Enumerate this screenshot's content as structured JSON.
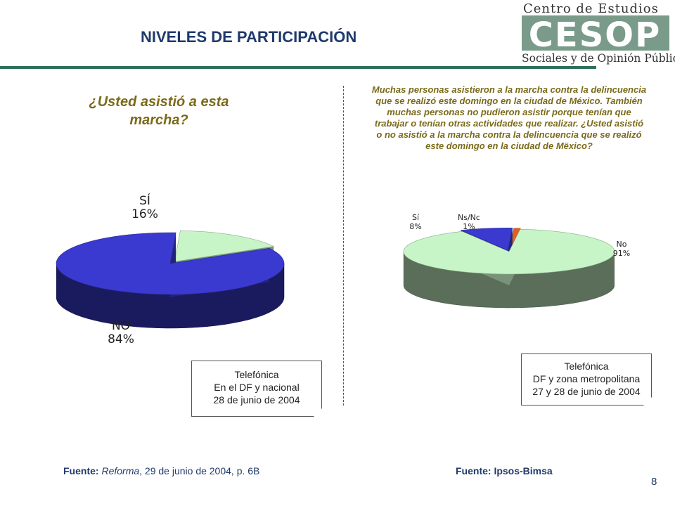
{
  "header": {
    "title": "NIVELES DE PARTICIPACIÓN",
    "logo": {
      "line1": "Centro de Estudios",
      "acronym": "CESOP",
      "line2": "Sociales y de Opinión Pública"
    }
  },
  "left": {
    "question": "¿Usted asistió a esta marcha?",
    "note_lines": [
      "Telefónica",
      "En el DF y nacional",
      "28 de junio de 2004"
    ],
    "source_label": "Fuente:",
    "source_pub": "Reforma",
    "source_rest": ", 29 de junio de 2004, p. 6B"
  },
  "right": {
    "question": "Muchas personas asistieron a la marcha contra la delincuencia que se realizó este domingo en la ciudad de México. También muchas personas no pudieron asistir porque tenían que trabajar o tenían otras actividades que realizar. ¿Usted asistió o no asistió a la marcha contra la delincuencia que se realizó este domingo en la ciudad de Mëxico?",
    "note_lines": [
      "Telefónica",
      "DF y zona metropolitana",
      "27 y 28 de junio de 2004"
    ],
    "source": "Fuente: Ipsos-Bimsa"
  },
  "page_number": "8",
  "chart_data": [
    {
      "type": "pie",
      "style": "3d-exploded",
      "categories": [
        "SÍ",
        "NO"
      ],
      "values": [
        16,
        84
      ],
      "value_labels": [
        "16%",
        "84%"
      ],
      "colors": [
        "#c8f5c8",
        "#3a3ad0"
      ]
    },
    {
      "type": "pie",
      "style": "3d-exploded",
      "categories": [
        "Sí",
        "Ns/Nc",
        "No"
      ],
      "values": [
        8,
        1,
        91
      ],
      "value_labels": [
        "8%",
        "1%",
        "91%"
      ],
      "colors": [
        "#3a3ad0",
        "#e06020",
        "#c8f5c8"
      ]
    }
  ]
}
